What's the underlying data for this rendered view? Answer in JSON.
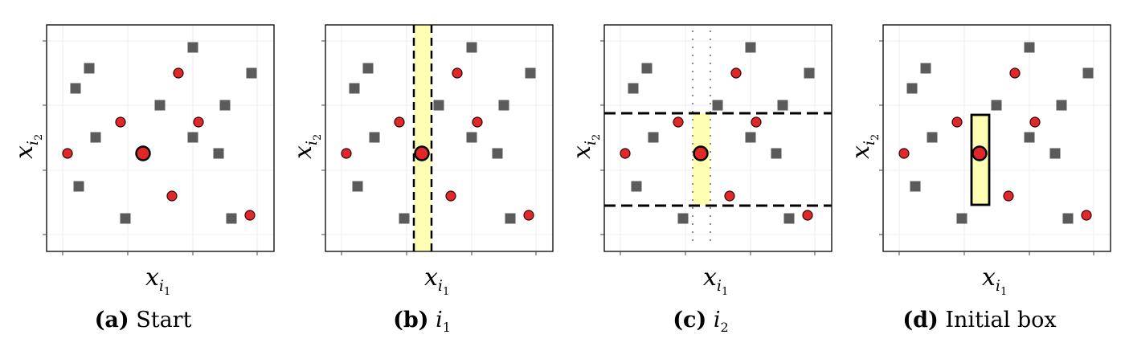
{
  "panels": [
    {
      "id": "a",
      "tag": "(a)",
      "caption": "Start",
      "caption_style": "text"
    },
    {
      "id": "b",
      "tag": "(b)",
      "caption": "i",
      "caption_sub": "1",
      "caption_style": "math"
    },
    {
      "id": "c",
      "tag": "(c)",
      "caption": "i",
      "caption_sub": "2",
      "caption_style": "math"
    },
    {
      "id": "d",
      "tag": "(d)",
      "caption": "Initial box",
      "caption_style": "text"
    }
  ],
  "axes": {
    "x": {
      "symbol": "x",
      "sub": "i",
      "subsub": "1"
    },
    "y": {
      "symbol": "x",
      "sub": "i",
      "subsub": "2"
    }
  },
  "colors": {
    "square": "#5b5b5b",
    "circle_fill": "#e02828",
    "circle_stroke": "#2a0000",
    "highlight": "#ffffb3",
    "grid": "#ececec",
    "frame": "#000000"
  }
}
